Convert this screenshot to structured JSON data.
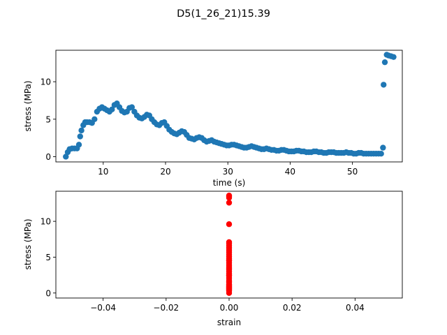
{
  "figure": {
    "title": "D5(1_26_21)15.39"
  },
  "chart_data": [
    {
      "type": "scatter",
      "title": "",
      "xlabel": "time (s)",
      "ylabel": "stress (MPa)",
      "xlim": [
        2.4,
        58.0
      ],
      "ylim": [
        -0.7,
        14.2
      ],
      "xticks": [
        10,
        20,
        30,
        40,
        50
      ],
      "xtick_labels": [
        "10",
        "20",
        "30",
        "40",
        "50"
      ],
      "yticks": [
        0,
        5,
        10
      ],
      "ytick_labels": [
        "0",
        "5",
        "10"
      ],
      "grid": false,
      "legend": "none",
      "color": "#1f77b4",
      "series": [
        {
          "x": [
            4.0,
            4.3,
            4.6,
            5.0,
            5.4,
            5.8,
            6.1,
            6.3,
            6.5,
            6.8,
            7.1,
            7.4,
            7.8,
            8.2,
            8.6,
            9.0,
            9.4,
            9.8,
            10.2,
            10.6,
            11.0,
            11.4,
            11.8,
            12.2,
            12.6,
            13.0,
            13.4,
            13.8,
            14.2,
            14.6,
            15.0,
            15.4,
            15.8,
            16.2,
            16.6,
            17.0,
            17.4,
            17.8,
            18.2,
            18.6,
            19.0,
            19.4,
            19.8,
            20.2,
            20.6,
            21.0,
            21.4,
            21.8,
            22.2,
            22.6,
            23.0,
            23.4,
            23.8,
            24.2,
            24.6,
            25.0,
            25.4,
            25.8,
            26.2,
            26.6,
            27.0,
            27.4,
            27.8,
            28.2,
            28.6,
            29.0,
            29.4,
            29.8,
            30.2,
            30.6,
            31.0,
            31.4,
            31.8,
            32.2,
            32.6,
            33.0,
            33.4,
            33.8,
            34.2,
            34.6,
            35.0,
            35.4,
            35.8,
            36.2,
            36.6,
            37.0,
            37.4,
            37.8,
            38.2,
            38.6,
            39.0,
            39.4,
            39.8,
            40.2,
            40.6,
            41.0,
            41.4,
            41.8,
            42.2,
            42.6,
            43.0,
            43.4,
            43.8,
            44.2,
            44.6,
            45.0,
            45.4,
            45.8,
            46.2,
            46.6,
            47.0,
            47.4,
            47.8,
            48.2,
            48.6,
            49.0,
            49.4,
            49.8,
            50.2,
            50.6,
            51.0,
            51.4,
            51.8,
            52.2,
            52.6,
            53.0,
            53.4,
            53.8,
            54.2,
            54.6,
            54.9,
            55.0,
            55.2,
            55.5,
            55.8,
            56.2,
            56.6
          ],
          "y": [
            0.0,
            0.6,
            1.0,
            1.1,
            1.1,
            1.1,
            1.6,
            2.7,
            3.5,
            4.2,
            4.6,
            4.6,
            4.6,
            4.5,
            5.0,
            6.0,
            6.4,
            6.6,
            6.4,
            6.2,
            6.0,
            6.3,
            6.9,
            7.1,
            6.6,
            6.1,
            5.9,
            6.0,
            6.5,
            6.6,
            6.0,
            5.5,
            5.2,
            5.1,
            5.3,
            5.6,
            5.5,
            5.0,
            4.6,
            4.3,
            4.2,
            4.5,
            4.6,
            4.1,
            3.6,
            3.3,
            3.1,
            3.0,
            3.2,
            3.4,
            3.3,
            2.9,
            2.5,
            2.4,
            2.3,
            2.5,
            2.6,
            2.5,
            2.2,
            2.0,
            2.1,
            2.2,
            2.0,
            1.9,
            1.8,
            1.7,
            1.6,
            1.5,
            1.5,
            1.6,
            1.6,
            1.5,
            1.4,
            1.3,
            1.2,
            1.2,
            1.3,
            1.4,
            1.3,
            1.2,
            1.1,
            1.0,
            1.0,
            1.1,
            1.0,
            0.9,
            0.9,
            0.8,
            0.8,
            0.9,
            0.9,
            0.8,
            0.7,
            0.7,
            0.7,
            0.8,
            0.8,
            0.7,
            0.7,
            0.6,
            0.6,
            0.6,
            0.7,
            0.7,
            0.6,
            0.6,
            0.5,
            0.5,
            0.6,
            0.6,
            0.6,
            0.5,
            0.5,
            0.5,
            0.5,
            0.6,
            0.5,
            0.5,
            0.4,
            0.4,
            0.5,
            0.5,
            0.4,
            0.4,
            0.4,
            0.4,
            0.4,
            0.4,
            0.4,
            0.4,
            1.2,
            9.6,
            12.6,
            13.6,
            13.5,
            13.4,
            13.3
          ]
        }
      ]
    },
    {
      "type": "scatter",
      "title": "",
      "xlabel": "strain",
      "ylabel": "stress (MPa)",
      "xlim": [
        -0.055,
        0.055
      ],
      "ylim": [
        -0.7,
        14.2
      ],
      "xticks": [
        -0.04,
        -0.02,
        0.0,
        0.02,
        0.04
      ],
      "xtick_labels": [
        "−0.04",
        "−0.02",
        "0.00",
        "0.02",
        "0.04"
      ],
      "yticks": [
        0,
        5,
        10
      ],
      "ytick_labels": [
        "0",
        "5",
        "10"
      ],
      "grid": false,
      "legend": "none",
      "color": "#ff0000",
      "series": [
        {
          "x": [
            0,
            0,
            0,
            0,
            0,
            0,
            0,
            0,
            0,
            0,
            0,
            0,
            0,
            0,
            0,
            0,
            0,
            0,
            0,
            0,
            0,
            0,
            0,
            0,
            0,
            0,
            0,
            0,
            0,
            0,
            0,
            0,
            0,
            0,
            0,
            0,
            0,
            0,
            0,
            0
          ],
          "y": [
            0.0,
            0.3,
            0.6,
            0.9,
            1.2,
            1.5,
            1.8,
            2.1,
            2.4,
            2.7,
            3.0,
            3.3,
            3.6,
            3.9,
            4.2,
            4.5,
            4.8,
            5.1,
            5.4,
            5.7,
            6.0,
            6.3,
            6.6,
            6.9,
            7.1,
            0.4,
            0.5,
            0.7,
            0.8,
            1.0,
            1.1,
            1.6,
            2.5,
            3.4,
            4.6,
            9.6,
            12.6,
            13.3,
            13.5,
            13.6
          ]
        }
      ]
    }
  ]
}
